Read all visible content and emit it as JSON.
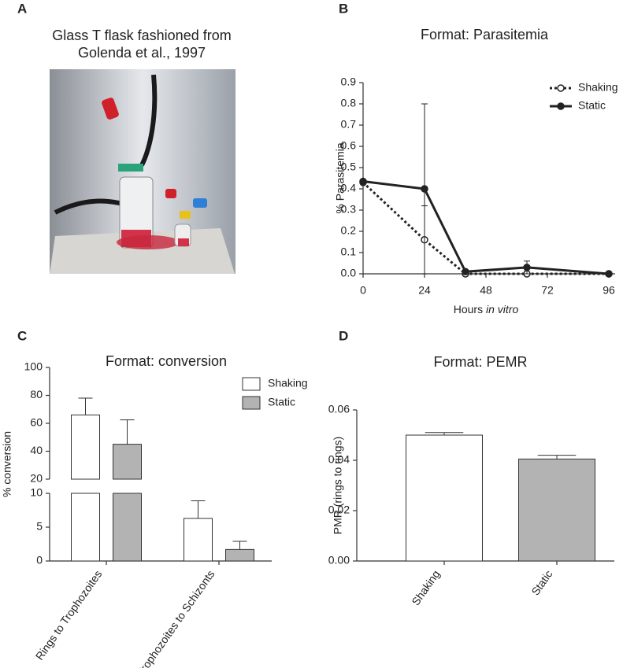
{
  "panel_labels": [
    "A",
    "B",
    "C",
    "D"
  ],
  "photo": {
    "title_lines": [
      "Glass T flask fashioned from",
      "Golenda et al., 1997"
    ]
  },
  "chart_data": [
    {
      "type": "line",
      "title": "Format: Parasitemia",
      "ylabel": "% Parasitemia",
      "xlabel": "Hours",
      "xlabel_italic": "in vitro",
      "x": [
        0,
        24,
        40,
        64,
        96
      ],
      "xlim": [
        0,
        96
      ],
      "xticks": [
        0,
        24,
        48,
        72,
        96
      ],
      "ylim": [
        0,
        0.9
      ],
      "yticks": [
        {
          "value": 0,
          "label": "0.0"
        },
        0.1,
        0.2,
        0.3,
        0.4,
        0.5,
        0.6,
        0.7,
        0.8,
        0.9
      ],
      "legend": "top-right",
      "series": [
        {
          "name": "Shaking",
          "color": "#222222",
          "line_style": "dotted",
          "marker": "open",
          "values": [
            0.43,
            0.16,
            0.0,
            0.0,
            0.0
          ],
          "errors": [
            0.0,
            0.16,
            0.0,
            0.0,
            0.0
          ]
        },
        {
          "name": "Static",
          "color": "#222222",
          "line_style": "solid",
          "marker": "filled",
          "values": [
            0.435,
            0.4,
            0.01,
            0.03,
            0.0
          ],
          "errors": [
            0.0,
            0.4,
            0.0,
            0.03,
            0.0
          ]
        }
      ]
    },
    {
      "type": "bar",
      "title": "Format: conversion",
      "ylabel": "% conversion",
      "categories": [
        "Rings to Trophozoites",
        "Trophozoites to Schizonts"
      ],
      "ylim_segments": [
        [
          0,
          10
        ],
        [
          20,
          100
        ]
      ],
      "yticks": [
        0,
        5,
        10,
        20,
        40,
        60,
        80,
        100
      ],
      "legend": "top-right",
      "series": [
        {
          "name": "Shaking",
          "color": "#ffffff",
          "values": [
            66,
            6.3
          ],
          "errors": [
            12,
            2.6
          ]
        },
        {
          "name": "Static",
          "color": "#b3b3b3",
          "values": [
            45,
            1.7
          ],
          "errors": [
            17.5,
            1.2
          ]
        }
      ]
    },
    {
      "type": "bar",
      "title": "Format: PEMR",
      "ylabel": "PMR (rings to rings)",
      "categories": [
        "Shaking",
        "Static"
      ],
      "ylim": [
        0,
        0.06
      ],
      "yticks": [
        {
          "value": 0,
          "label": "0.00"
        },
        {
          "value": 0.02,
          "label": "0.02"
        },
        {
          "value": 0.04,
          "label": "0.04"
        },
        {
          "value": 0.06,
          "label": "0.06"
        }
      ],
      "series": [
        {
          "colors": [
            "#ffffff",
            "#b3b3b3"
          ],
          "values": [
            0.05,
            0.0405
          ],
          "errors": [
            0.001,
            0.0015
          ]
        }
      ]
    }
  ]
}
